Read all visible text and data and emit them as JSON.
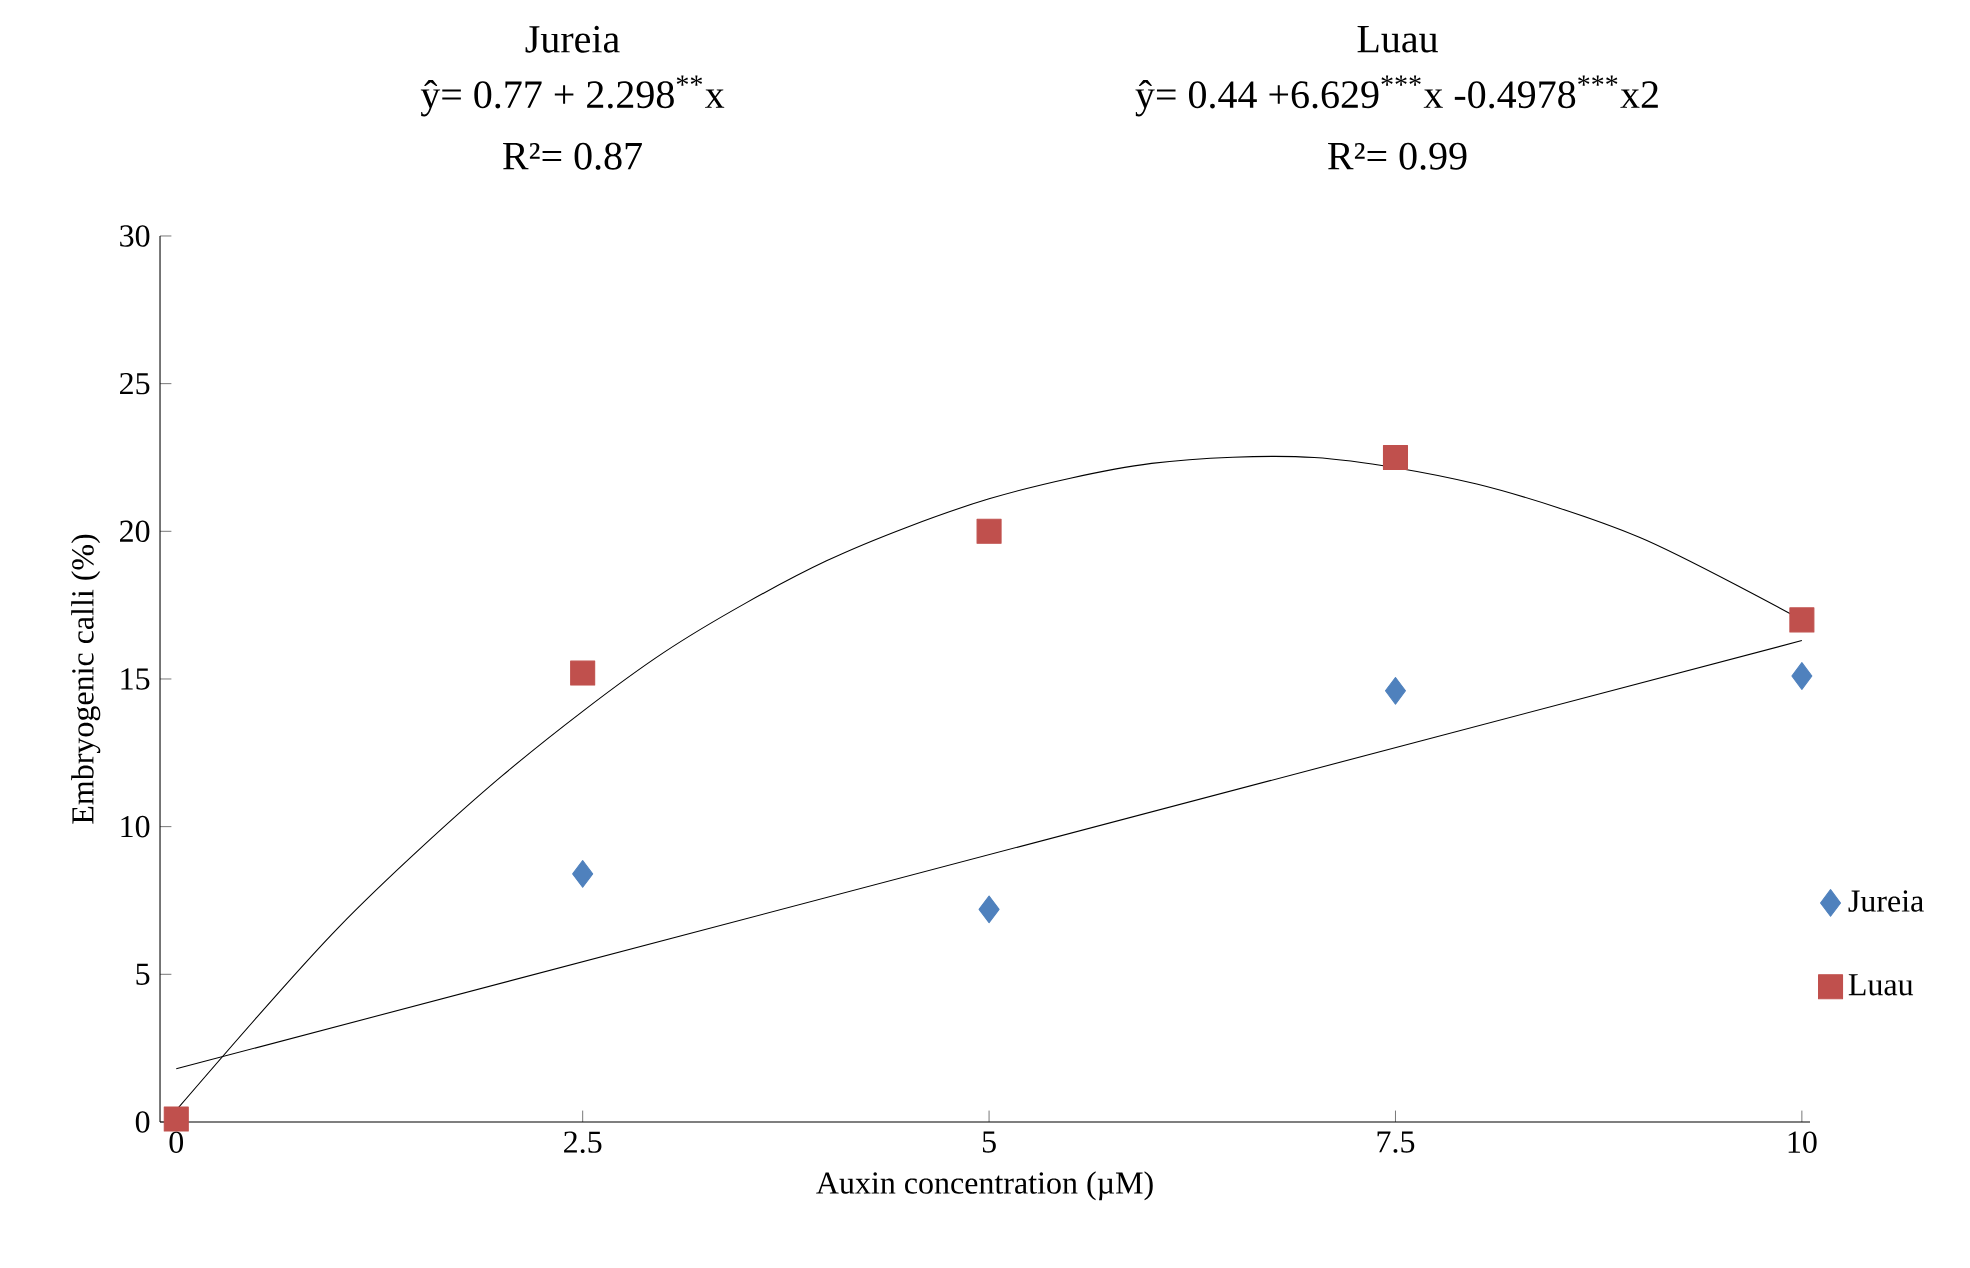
{
  "chart_data": {
    "type": "scatter",
    "annotations": [
      "Jureia",
      "ŷ= 0.77 + 2.298$^{**}$x",
      "R²= 0.87",
      "Luau",
      "ŷ= 0.44 +6.629$^{***}$x -0.4978$^{***}$x2",
      "R²= 0.99"
    ],
    "xlabel": "Auxin concentration (µM)",
    "ylabel": "Embryogenic calli (%)",
    "x": [
      0,
      2.5,
      5,
      7.5,
      10
    ],
    "series": [
      {
        "name": "Jureia",
        "color": "#4f81bd",
        "marker": "diamond",
        "values": [
          null,
          8.4,
          7.2,
          14.6,
          15.1
        ]
      },
      {
        "name": "Luau",
        "color": "#c0504d",
        "marker": "square",
        "values": [
          0.1,
          15.2,
          20.0,
          22.5,
          17.0
        ]
      },
      {
        "type": "line",
        "color": "#000000",
        "marker": "none",
        "x": [
          0,
          10
        ],
        "values": [
          1.8,
          16.3
        ]
      },
      {
        "type": "line",
        "color": "#000000",
        "marker": "none",
        "x": [
          0,
          1,
          2,
          3,
          4,
          5,
          6,
          7,
          8,
          9,
          10
        ],
        "values": [
          0.4,
          6.6,
          11.7,
          15.9,
          19.0,
          21.1,
          22.3,
          22.5,
          21.6,
          19.8,
          17.0
        ]
      }
    ],
    "xlim": [
      -0.1,
      10.05
    ],
    "xticks": [
      0,
      2.5,
      5,
      7.5,
      10
    ],
    "ylim": [
      0,
      30
    ],
    "yticks": [
      0,
      5,
      10,
      15,
      20,
      25,
      30
    ],
    "grid": false,
    "legend": "right"
  }
}
